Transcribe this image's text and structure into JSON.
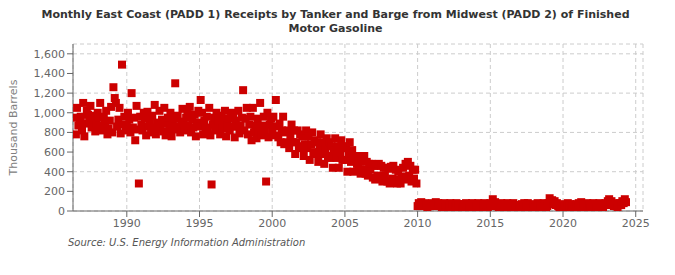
{
  "chart_data": {
    "type": "scatter",
    "title": "Monthly East Coast (PADD 1) Receipts by Tanker and Barge from Midwest (PADD 2) of Finished\nMotor Gasoline",
    "ylabel": "Thousand Barrels",
    "annotations": [
      "Source: U.S. Energy Information Administration"
    ],
    "color": "#cc0000",
    "marker": "square",
    "grid": true,
    "xlim": [
      1986.3,
      2025.5
    ],
    "xticks": [
      1990,
      1995,
      2000,
      2005,
      2010,
      2015,
      2020,
      2025
    ],
    "ylim": [
      0,
      1700
    ],
    "yticks": [
      0,
      200,
      400,
      600,
      800,
      {
        "value": 1000,
        "label": "1,000"
      },
      {
        "value": 1200,
        "label": "1,200"
      },
      {
        "value": 1400,
        "label": "1,400"
      },
      {
        "value": 1600,
        "label": "1,600"
      }
    ],
    "x": [
      1986.42,
      1986.5,
      1986.58,
      1986.67,
      1986.75,
      1986.83,
      1986.92,
      1987.0,
      1987.08,
      1987.17,
      1987.25,
      1987.33,
      1987.42,
      1987.5,
      1987.58,
      1987.67,
      1987.75,
      1987.83,
      1987.92,
      1988.0,
      1988.08,
      1988.17,
      1988.25,
      1988.33,
      1988.42,
      1988.5,
      1988.58,
      1988.67,
      1988.75,
      1988.83,
      1988.92,
      1989.0,
      1989.08,
      1989.17,
      1989.25,
      1989.33,
      1989.42,
      1989.5,
      1989.58,
      1989.67,
      1989.75,
      1989.83,
      1989.92,
      1990.0,
      1990.08,
      1990.17,
      1990.25,
      1990.33,
      1990.42,
      1990.5,
      1990.58,
      1990.67,
      1990.75,
      1990.83,
      1990.92,
      1991.0,
      1991.08,
      1991.17,
      1991.25,
      1991.33,
      1991.42,
      1991.5,
      1991.58,
      1991.67,
      1991.75,
      1991.83,
      1991.92,
      1992.0,
      1992.08,
      1992.17,
      1992.25,
      1992.33,
      1992.42,
      1992.5,
      1992.58,
      1992.67,
      1992.75,
      1992.83,
      1992.92,
      1993.0,
      1993.08,
      1993.17,
      1993.25,
      1993.33,
      1993.42,
      1993.5,
      1993.58,
      1993.67,
      1993.75,
      1993.83,
      1993.92,
      1994.0,
      1994.08,
      1994.17,
      1994.25,
      1994.33,
      1994.42,
      1994.5,
      1994.58,
      1994.67,
      1994.75,
      1994.83,
      1994.92,
      1995.0,
      1995.08,
      1995.17,
      1995.25,
      1995.33,
      1995.42,
      1995.5,
      1995.58,
      1995.67,
      1995.75,
      1995.83,
      1995.92,
      1996.0,
      1996.08,
      1996.17,
      1996.25,
      1996.33,
      1996.42,
      1996.5,
      1996.58,
      1996.67,
      1996.75,
      1996.83,
      1996.92,
      1997.0,
      1997.08,
      1997.17,
      1997.25,
      1997.33,
      1997.42,
      1997.5,
      1997.58,
      1997.67,
      1997.75,
      1997.83,
      1997.92,
      1998.0,
      1998.08,
      1998.17,
      1998.25,
      1998.33,
      1998.42,
      1998.5,
      1998.58,
      1998.67,
      1998.75,
      1998.83,
      1998.92,
      1999.0,
      1999.08,
      1999.17,
      1999.25,
      1999.33,
      1999.42,
      1999.5,
      1999.58,
      1999.67,
      1999.75,
      1999.83,
      1999.92,
      2000.0,
      2000.08,
      2000.17,
      2000.25,
      2000.33,
      2000.42,
      2000.5,
      2000.58,
      2000.67,
      2000.75,
      2000.83,
      2000.92,
      2001.0,
      2001.08,
      2001.17,
      2001.25,
      2001.33,
      2001.42,
      2001.5,
      2001.58,
      2001.67,
      2001.75,
      2001.83,
      2001.92,
      2002.0,
      2002.08,
      2002.17,
      2002.25,
      2002.33,
      2002.42,
      2002.5,
      2002.58,
      2002.67,
      2002.75,
      2002.83,
      2002.92,
      2003.0,
      2003.08,
      2003.17,
      2003.25,
      2003.33,
      2003.42,
      2003.5,
      2003.58,
      2003.67,
      2003.75,
      2003.83,
      2003.92,
      2004.0,
      2004.08,
      2004.17,
      2004.25,
      2004.33,
      2004.42,
      2004.5,
      2004.58,
      2004.67,
      2004.75,
      2004.83,
      2004.92,
      2005.0,
      2005.08,
      2005.17,
      2005.25,
      2005.33,
      2005.42,
      2005.5,
      2005.58,
      2005.67,
      2005.75,
      2005.83,
      2005.92,
      2006.0,
      2006.08,
      2006.17,
      2006.25,
      2006.33,
      2006.42,
      2006.5,
      2006.58,
      2006.67,
      2006.75,
      2006.83,
      2006.92,
      2007.0,
      2007.08,
      2007.17,
      2007.25,
      2007.33,
      2007.42,
      2007.5,
      2007.58,
      2007.67,
      2007.75,
      2007.83,
      2007.92,
      2008.0,
      2008.08,
      2008.17,
      2008.25,
      2008.33,
      2008.42,
      2008.5,
      2008.58,
      2008.67,
      2008.75,
      2008.83,
      2008.92,
      2009.0,
      2009.08,
      2009.17,
      2009.25,
      2009.33,
      2009.42,
      2009.5,
      2009.58,
      2009.67,
      2009.75,
      2009.83,
      2009.92,
      2010.0,
      2010.08,
      2010.17,
      2010.25,
      2010.33,
      2010.42,
      2010.5,
      2010.58,
      2010.67,
      2010.75,
      2010.83,
      2010.92,
      2011.0,
      2011.08,
      2011.17,
      2011.25,
      2011.33,
      2011.42,
      2011.5,
      2011.58,
      2011.67,
      2011.75,
      2011.83,
      2011.92,
      2012.0,
      2012.08,
      2012.17,
      2012.25,
      2012.33,
      2012.42,
      2012.5,
      2012.58,
      2012.67,
      2012.75,
      2012.83,
      2012.92,
      2013.0,
      2013.08,
      2013.17,
      2013.25,
      2013.33,
      2013.42,
      2013.5,
      2013.58,
      2013.67,
      2013.75,
      2013.83,
      2013.92,
      2014.0,
      2014.08,
      2014.17,
      2014.25,
      2014.33,
      2014.42,
      2014.5,
      2014.58,
      2014.67,
      2014.75,
      2014.83,
      2014.92,
      2015.0,
      2015.08,
      2015.17,
      2015.25,
      2015.33,
      2015.42,
      2015.5,
      2015.58,
      2015.67,
      2015.75,
      2015.83,
      2015.92,
      2016.0,
      2016.08,
      2016.17,
      2016.25,
      2016.33,
      2016.42,
      2016.5,
      2016.58,
      2016.67,
      2016.75,
      2016.83,
      2016.92,
      2017.0,
      2017.08,
      2017.17,
      2017.25,
      2017.33,
      2017.42,
      2017.5,
      2017.58,
      2017.67,
      2017.75,
      2017.83,
      2017.92,
      2018.0,
      2018.08,
      2018.17,
      2018.25,
      2018.33,
      2018.42,
      2018.5,
      2018.58,
      2018.67,
      2018.75,
      2018.83,
      2018.92,
      2019.0,
      2019.08,
      2019.17,
      2019.25,
      2019.33,
      2019.42,
      2019.5,
      2019.58,
      2019.67,
      2019.75,
      2019.83,
      2019.92,
      2020.0,
      2020.08,
      2020.17,
      2020.25,
      2020.33,
      2020.42,
      2020.5,
      2020.58,
      2020.67,
      2020.75,
      2020.83,
      2020.92,
      2021.0,
      2021.08,
      2021.17,
      2021.25,
      2021.33,
      2021.42,
      2021.5,
      2021.58,
      2021.67,
      2021.75,
      2021.83,
      2021.92,
      2022.0,
      2022.08,
      2022.17,
      2022.25,
      2022.33,
      2022.42,
      2022.5,
      2022.58,
      2022.67,
      2022.75,
      2022.83,
      2022.92,
      2023.0,
      2023.08,
      2023.17,
      2023.25,
      2023.33,
      2023.42,
      2023.5,
      2023.58,
      2023.67,
      2023.75,
      2023.83,
      2023.92,
      2024.0,
      2024.08,
      2024.17,
      2024.25,
      2024.33
    ],
    "values": [
      950,
      780,
      1050,
      870,
      930,
      960,
      820,
      1100,
      760,
      890,
      1020,
      980,
      920,
      1070,
      850,
      900,
      970,
      810,
      880,
      1000,
      950,
      1100,
      820,
      870,
      960,
      910,
      1020,
      780,
      840,
      920,
      1060,
      800,
      1260,
      1150,
      1100,
      860,
      930,
      1050,
      790,
      1490,
      880,
      960,
      820,
      870,
      1000,
      930,
      800,
      1200,
      850,
      950,
      720,
      1070,
      830,
      280,
      960,
      880,
      820,
      1000,
      940,
      770,
      1010,
      860,
      920,
      800,
      970,
      850,
      1080,
      780,
      900,
      840,
      1020,
      870,
      930,
      810,
      1050,
      770,
      890,
      950,
      820,
      1000,
      760,
      880,
      940,
      1300,
      830,
      970,
      860,
      800,
      910,
      1040,
      880,
      820,
      950,
      1000,
      870,
      1060,
      800,
      930,
      850,
      980,
      760,
      900,
      1020,
      860,
      1130,
      1000,
      780,
      920,
      850,
      960,
      810,
      1050,
      770,
      270,
      880,
      950,
      820,
      1000,
      860,
      920,
      780,
      970,
      840,
      900,
      1020,
      760,
      870,
      940,
      820,
      1000,
      860,
      980,
      750,
      920,
      860,
      1020,
      790,
      870,
      950,
      1230,
      820,
      940,
      1050,
      780,
      880,
      960,
      720,
      1050,
      800,
      870,
      740,
      940,
      800,
      1100,
      770,
      870,
      960,
      820,
      300,
      1000,
      750,
      880,
      940,
      820,
      960,
      770,
      1130,
      860,
      750,
      890,
      700,
      820,
      960,
      680,
      800,
      700,
      820,
      640,
      760,
      880,
      700,
      820,
      580,
      700,
      820,
      660,
      780,
      640,
      760,
      560,
      680,
      820,
      640,
      760,
      520,
      680,
      800,
      600,
      720,
      580,
      700,
      500,
      660,
      780,
      580,
      700,
      480,
      640,
      740,
      560,
      700,
      540,
      660,
      440,
      620,
      740,
      540,
      660,
      440,
      600,
      720,
      520,
      660,
      520,
      640,
      400,
      580,
      700,
      500,
      620,
      400,
      560,
      540,
      480,
      440,
      500,
      380,
      560,
      420,
      560,
      380,
      500,
      360,
      480,
      420,
      480,
      340,
      460,
      320,
      460,
      360,
      480,
      340,
      460,
      300,
      440,
      360,
      440,
      300,
      430,
      280,
      450,
      330,
      460,
      320,
      420,
      280,
      400,
      320,
      280,
      350,
      440,
      320,
      480,
      350,
      500,
      360,
      460,
      300,
      420,
      330,
      420,
      280,
      50,
      80,
      60,
      90,
      70,
      50,
      80,
      60,
      40,
      70,
      50,
      60,
      80,
      50,
      70,
      90,
      60,
      80,
      50,
      70,
      40,
      60,
      80,
      50,
      70,
      40,
      60,
      80,
      50,
      70,
      40,
      60,
      80,
      50,
      70,
      40,
      60,
      40,
      70,
      50,
      80,
      50,
      70,
      40,
      60,
      80,
      50,
      70,
      40,
      60,
      80,
      50,
      70,
      40,
      60,
      80,
      50,
      70,
      40,
      60,
      80,
      50,
      120,
      60,
      90,
      50,
      70,
      40,
      60,
      80,
      50,
      70,
      40,
      60,
      80,
      50,
      70,
      40,
      60,
      80,
      50,
      30,
      60,
      40,
      60,
      40,
      70,
      50,
      80,
      40,
      60,
      80,
      40,
      60,
      30,
      50,
      70,
      40,
      60,
      80,
      50,
      70,
      40,
      60,
      80,
      50,
      30,
      50,
      80,
      130,
      90,
      110,
      70,
      100,
      60,
      80,
      50,
      40,
      30,
      20,
      50,
      70,
      40,
      60,
      80,
      50,
      70,
      40,
      60,
      20,
      50,
      70,
      40,
      80,
      60,
      90,
      50,
      70,
      40,
      60,
      80,
      50,
      70,
      40,
      60,
      80,
      50,
      70,
      40,
      60,
      80,
      50,
      70,
      40,
      60,
      80,
      60,
      100,
      120,
      80,
      100,
      70,
      50,
      80,
      60,
      40,
      60,
      80,
      60,
      100,
      80,
      120,
      90
    ]
  }
}
